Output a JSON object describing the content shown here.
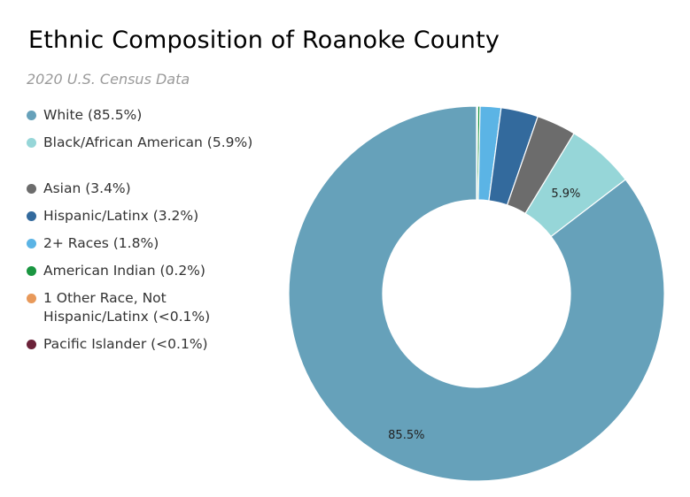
{
  "chart_data": {
    "type": "pie",
    "title": "Ethnic Composition of Roanoke County",
    "subtitle": "2020 U.S. Census Data",
    "legend_position": "left",
    "donut": true,
    "slices": [
      {
        "label": "White (85.5%)",
        "value": 85.5,
        "color": "#66a1ba",
        "data_label": "85.5%"
      },
      {
        "label": "Black/African American (5.9%)",
        "value": 5.9,
        "color": "#96d6d8",
        "data_label": "5.9%"
      },
      {
        "label": "Asian (3.4%)",
        "value": 3.4,
        "color": "#6c6c6c",
        "data_label": ""
      },
      {
        "label": "Hispanic/Latinx (3.2%)",
        "value": 3.2,
        "color": "#336a9d",
        "data_label": ""
      },
      {
        "label": "2+ Races (1.8%)",
        "value": 1.8,
        "color": "#5bb4e5",
        "data_label": ""
      },
      {
        "label": "American Indian (0.2%)",
        "value": 0.2,
        "color": "#1a9641",
        "data_label": ""
      },
      {
        "label": "1 Other Race, Not Hispanic/Latinx (<0.1%)",
        "value": 0.05,
        "color": "#e8995a",
        "data_label": ""
      },
      {
        "label": "Pacific Islander (<0.1%)",
        "value": 0.05,
        "color": "#6b2239",
        "data_label": ""
      }
    ]
  }
}
